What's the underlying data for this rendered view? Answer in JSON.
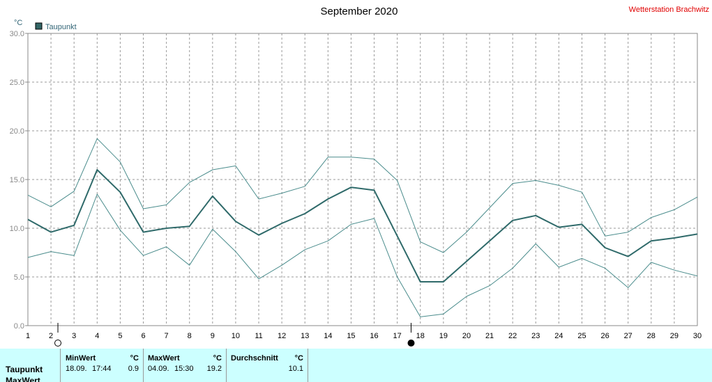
{
  "header": {
    "title": "September 2020",
    "station": "Wetterstation Brachwitz"
  },
  "legend": {
    "label": "Taupunkt",
    "color": "#336666"
  },
  "chart_data": {
    "type": "line",
    "ylabel": "°C",
    "ylim": [
      0,
      30
    ],
    "yticks": [
      "0.0",
      "5.0",
      "10.0",
      "15.0",
      "20.0",
      "25.0",
      "30.0"
    ],
    "x": [
      1,
      2,
      3,
      4,
      5,
      6,
      7,
      8,
      9,
      10,
      11,
      12,
      13,
      14,
      15,
      16,
      17,
      18,
      19,
      20,
      21,
      22,
      23,
      24,
      25,
      26,
      27,
      28,
      29,
      30
    ],
    "grid": true,
    "series": [
      {
        "name": "Taupunkt",
        "role": "mean",
        "values": [
          10.9,
          9.6,
          10.3,
          16.0,
          13.7,
          9.6,
          10.0,
          10.2,
          13.3,
          10.7,
          9.3,
          10.5,
          11.5,
          13.0,
          14.2,
          13.9,
          9.2,
          4.5,
          4.5,
          6.6,
          8.7,
          10.8,
          11.3,
          10.1,
          10.4,
          8.0,
          7.1,
          8.7,
          9.0,
          9.4
        ]
      },
      {
        "role": "max",
        "values": [
          13.4,
          12.2,
          13.8,
          19.2,
          16.8,
          12.0,
          12.4,
          14.7,
          16.0,
          16.4,
          13.0,
          13.6,
          14.3,
          17.3,
          17.3,
          17.1,
          14.9,
          8.6,
          7.5,
          9.6,
          12.1,
          14.6,
          14.9,
          14.4,
          13.7,
          9.2,
          9.6,
          11.1,
          11.9,
          13.2
        ]
      },
      {
        "role": "min",
        "values": [
          7.0,
          7.6,
          7.2,
          13.5,
          9.8,
          7.2,
          8.1,
          6.2,
          9.9,
          7.6,
          4.8,
          6.2,
          7.8,
          8.7,
          10.4,
          11.0,
          5.0,
          0.9,
          1.2,
          3.0,
          4.1,
          5.9,
          8.4,
          6.0,
          6.9,
          5.9,
          3.9,
          6.5,
          5.7,
          5.1
        ]
      }
    ],
    "markers": [
      {
        "x": 2.3,
        "symbol": "open-circle"
      },
      {
        "x": 17.6,
        "symbol": "filled-circle"
      }
    ]
  },
  "stats": {
    "row_label": "Taupunkt",
    "row2_label": "MaxWert",
    "unit": "°C",
    "min": {
      "header": "MinWert",
      "date": "18.09.",
      "time": "17:44",
      "value": "0.9"
    },
    "max": {
      "header": "MaxWert",
      "date": "04.09.",
      "time": "15:30",
      "value": "19.2"
    },
    "avg": {
      "header": "Durchschnitt",
      "value": "10.1"
    }
  }
}
